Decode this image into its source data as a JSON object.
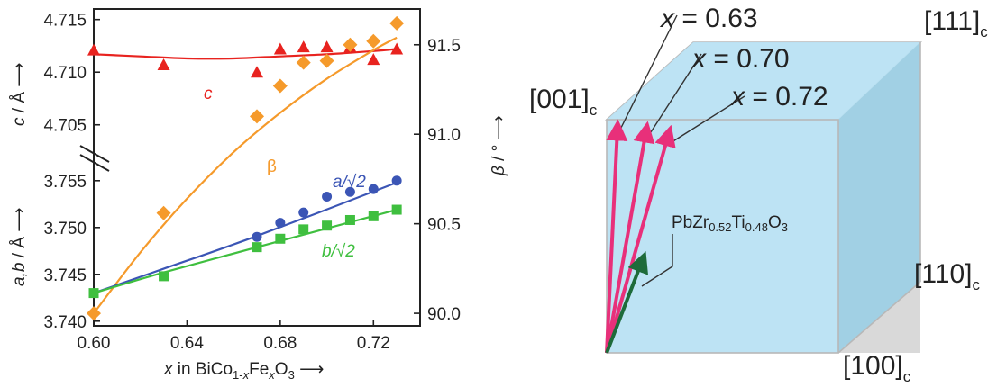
{
  "chart_data": [
    {
      "type": "scatter",
      "x_range": [
        0.6,
        0.74
      ],
      "x_ticks": [
        "0.60",
        "0.64",
        "0.68",
        "0.72"
      ],
      "xlabel": {
        "var": "x",
        "mid": " in BiCo",
        "sub1": "1-",
        "subx": "x",
        "fe": "Fe",
        "subx2": "x",
        "o": "O",
        "sub3": "3",
        "arrow": " ⟶"
      },
      "ylabel_top": {
        "var": "c",
        "unit": " / Å ⟶"
      },
      "ylabel_bottom": {
        "var": "a,b",
        "unit": " / Å ⟶"
      },
      "ylabel_right": {
        "var": "β",
        "unit": " / ° ⟶"
      },
      "y_top_range": [
        4.7025,
        4.716
      ],
      "y_top_ticks": [
        "4.705",
        "4.710",
        "4.715"
      ],
      "y_bottom_range": [
        3.7395,
        3.757
      ],
      "y_bottom_ticks": [
        "3.740",
        "3.745",
        "3.750",
        "3.755"
      ],
      "y_right_range": [
        89.93,
        91.7
      ],
      "y_right_ticks": [
        "90.0",
        "90.5",
        "91.0",
        "91.5"
      ],
      "axis_break": true,
      "series": [
        {
          "name": "c",
          "label": "c",
          "italic": true,
          "axis": "top",
          "marker": "triangle",
          "color": "#e8231f",
          "points": [
            [
              0.6,
              4.7121
            ],
            [
              0.63,
              4.7107
            ],
            [
              0.67,
              4.71
            ],
            [
              0.68,
              4.7122
            ],
            [
              0.69,
              4.7124
            ],
            [
              0.7,
              4.7124
            ],
            [
              0.71,
              4.7124
            ],
            [
              0.72,
              4.7112
            ],
            [
              0.73,
              4.7122
            ]
          ],
          "fit": [
            [
              0.6,
              4.7117
            ],
            [
              0.62,
              4.7115
            ],
            [
              0.64,
              4.7113
            ],
            [
              0.66,
              4.7113
            ],
            [
              0.68,
              4.7115
            ],
            [
              0.7,
              4.7117
            ],
            [
              0.72,
              4.712
            ],
            [
              0.73,
              4.7122
            ]
          ]
        },
        {
          "name": "β",
          "label": "β",
          "italic": false,
          "axis": "right",
          "marker": "diamond",
          "color": "#f59a2b",
          "points": [
            [
              0.6,
              90.0
            ],
            [
              0.63,
              90.56
            ],
            [
              0.67,
              91.1
            ],
            [
              0.68,
              91.27
            ],
            [
              0.69,
              91.4
            ],
            [
              0.7,
              91.41
            ],
            [
              0.71,
              91.5
            ],
            [
              0.72,
              91.52
            ],
            [
              0.73,
              91.62
            ]
          ],
          "fit": [
            [
              0.6,
              90.0
            ],
            [
              0.62,
              90.34
            ],
            [
              0.64,
              90.64
            ],
            [
              0.66,
              90.9
            ],
            [
              0.68,
              91.12
            ],
            [
              0.7,
              91.31
            ],
            [
              0.72,
              91.47
            ],
            [
              0.73,
              91.54
            ]
          ]
        },
        {
          "name": "a/√2",
          "label": "a/√2",
          "italic": true,
          "axis": "bottom",
          "marker": "circle",
          "color": "#3b55b5",
          "points": [
            [
              0.67,
              3.749
            ],
            [
              0.68,
              3.7505
            ],
            [
              0.69,
              3.7516
            ],
            [
              0.7,
              3.7533
            ],
            [
              0.71,
              3.7538
            ],
            [
              0.72,
              3.7541
            ],
            [
              0.73,
              3.755
            ]
          ],
          "fit": [
            [
              0.6,
              3.743
            ],
            [
              0.63,
              3.7456
            ],
            [
              0.67,
              3.7491
            ],
            [
              0.73,
              3.7548
            ]
          ]
        },
        {
          "name": "b/√2",
          "label": "b/√2",
          "italic": true,
          "axis": "bottom",
          "marker": "square",
          "color": "#3fbf3f",
          "points": [
            [
              0.6,
              3.743
            ],
            [
              0.63,
              3.7448
            ],
            [
              0.67,
              3.7479
            ],
            [
              0.68,
              3.7488
            ],
            [
              0.69,
              3.7498
            ],
            [
              0.7,
              3.7502
            ],
            [
              0.71,
              3.7508
            ],
            [
              0.72,
              3.7512
            ],
            [
              0.73,
              3.7519
            ]
          ],
          "fit": [
            [
              0.6,
              3.743
            ],
            [
              0.63,
              3.7452
            ],
            [
              0.67,
              3.7479
            ],
            [
              0.73,
              3.7519
            ]
          ]
        }
      ]
    }
  ],
  "diagram": {
    "direction_labels": [
      {
        "id": "111",
        "text": "[111]",
        "sub": "c"
      },
      {
        "id": "001",
        "text": "[001]",
        "sub": "c"
      },
      {
        "id": "110",
        "text": "[110]",
        "sub": "c"
      },
      {
        "id": "100",
        "text": "[100]",
        "sub": "c"
      }
    ],
    "composition_labels": [
      {
        "var": "x",
        "value": " = 0.63"
      },
      {
        "var": "x",
        "value": " = 0.70"
      },
      {
        "var": "x",
        "value": " = 0.72"
      }
    ],
    "substrate_label": {
      "pb": "PbZr",
      "sub1": "0.52",
      "ti": "Ti",
      "sub2": "0.48",
      "o": "O",
      "sub3": "3"
    },
    "colors": {
      "face": "#b9e2f3",
      "side": "#9ccde0",
      "arrow": "#e8307a",
      "substrate_arrow": "#1e6b3a",
      "edge": "#b8b8b8"
    }
  }
}
